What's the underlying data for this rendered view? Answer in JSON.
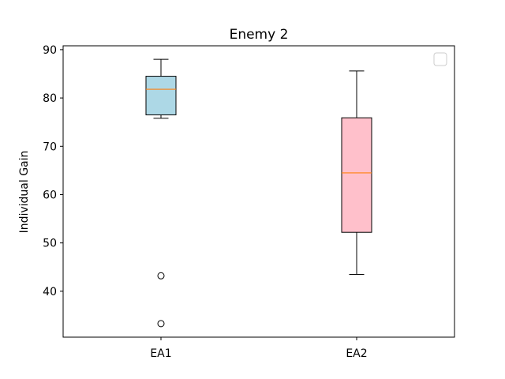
{
  "chart_data": {
    "type": "box",
    "title": "Enemy 2",
    "xlabel": "",
    "ylabel": "Individual Gain",
    "ylim": [
      30.5,
      90.8
    ],
    "yticks": [
      40,
      50,
      60,
      70,
      80,
      90
    ],
    "grid": false,
    "legend": {
      "placement": "top-right",
      "entries": []
    },
    "categories": [
      "EA1",
      "EA2"
    ],
    "boxes": [
      {
        "label": "EA1",
        "whisker_low": 75.8,
        "q1": 76.5,
        "median": 81.8,
        "q3": 84.5,
        "whisker_high": 88.0,
        "outliers": [
          43.2,
          33.3
        ],
        "color": "#add8e6"
      },
      {
        "label": "EA2",
        "whisker_low": 43.5,
        "q1": 52.2,
        "median": 64.5,
        "q3": 75.9,
        "whisker_high": 85.6,
        "outliers": [],
        "color": "#ffc0cb"
      }
    ],
    "median_color": "#ff7f0e"
  }
}
